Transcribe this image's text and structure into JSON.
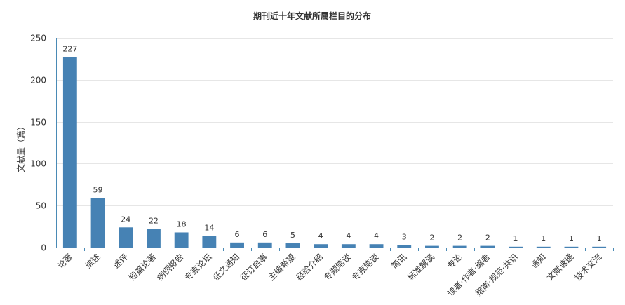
{
  "chart_data": {
    "type": "bar",
    "title": "期刊近十年文献所属栏目的分布",
    "ylabel": "文献量（篇）",
    "xlabel": "",
    "ylim": [
      0,
      250
    ],
    "yticks": [
      0,
      50,
      100,
      150,
      200,
      250
    ],
    "grid": true,
    "bar_color": "#4682b4",
    "axis_color": "#4a8ab5",
    "categories": [
      "论著",
      "综述",
      "述评",
      "短篇论著",
      "病例报告",
      "专家论坛",
      "征文通知",
      "征订启事",
      "主编希望",
      "经验介绍",
      "专题笔谈",
      "专家笔谈",
      "简讯",
      "标准解读",
      "专论",
      "读者·作者·编者",
      "指南·规范·共识",
      "通知",
      "文献速递",
      "技术交流"
    ],
    "values": [
      227,
      59,
      24,
      22,
      18,
      14,
      6,
      6,
      5,
      4,
      4,
      4,
      3,
      2,
      2,
      2,
      1,
      1,
      1,
      1
    ]
  }
}
